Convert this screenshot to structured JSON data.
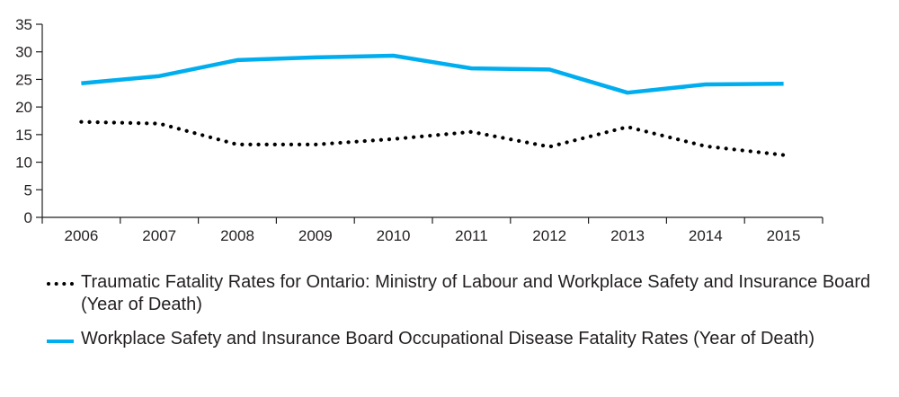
{
  "chart_data": {
    "type": "line",
    "title": "",
    "xlabel": "",
    "ylabel": "",
    "categories": [
      "2006",
      "2007",
      "2008",
      "2009",
      "2010",
      "2011",
      "2012",
      "2013",
      "2014",
      "2015"
    ],
    "ylim": [
      0,
      35
    ],
    "yticks": [
      0,
      5,
      10,
      15,
      20,
      25,
      30,
      35
    ],
    "grid": false,
    "legend_placement": "bottom",
    "series": [
      {
        "name": "Traumatic Fatality Rates for Ontario: Ministry of Labour and Workplace Safety and Insurance Board (Year of Death)",
        "style": "dotted",
        "color": "#000000",
        "values": [
          17.3,
          17.0,
          13.2,
          13.2,
          14.2,
          15.5,
          12.8,
          16.4,
          12.9,
          11.3
        ]
      },
      {
        "name": "Workplace Safety and Insurance Board Occupational Disease Fatality Rates (Year of Death)",
        "style": "solid",
        "color": "#00aeef",
        "values": [
          24.3,
          25.6,
          28.5,
          29.0,
          29.3,
          27.0,
          26.8,
          22.6,
          24.1,
          24.2
        ]
      }
    ]
  }
}
